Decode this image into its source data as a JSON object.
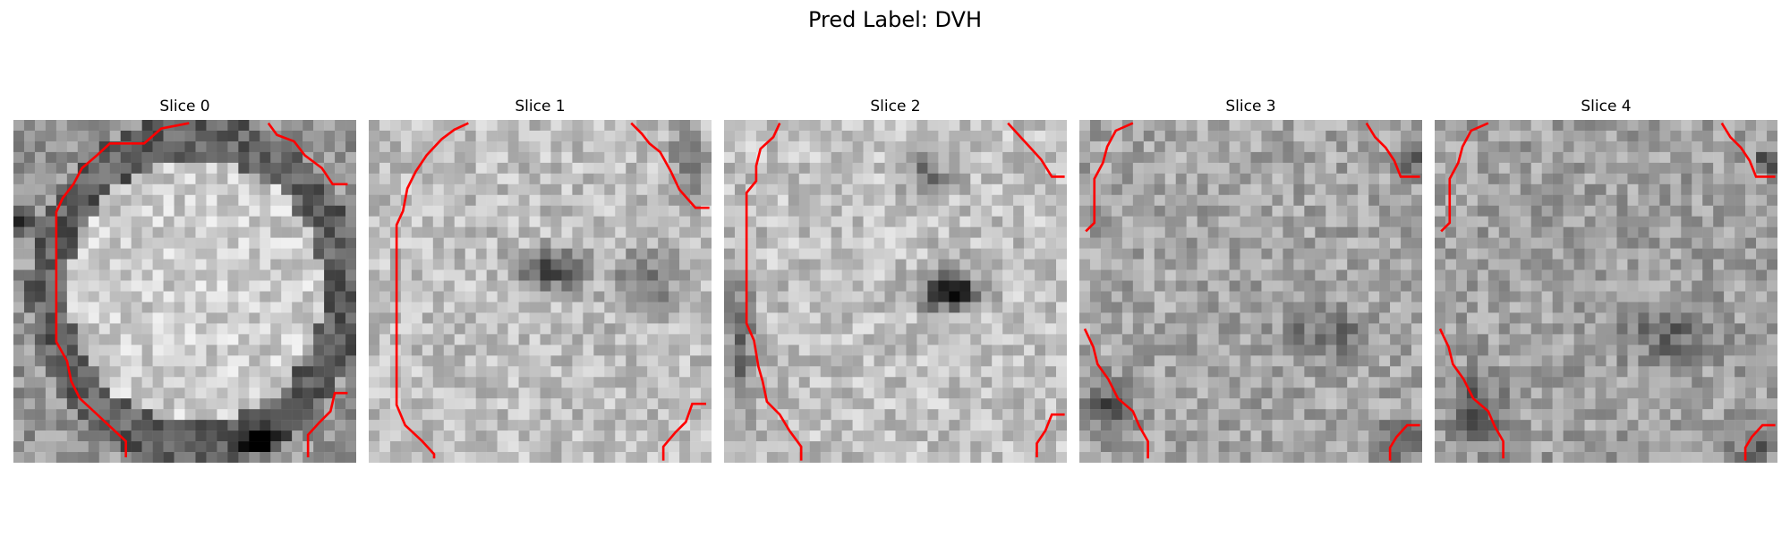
{
  "figure": {
    "title": "Pred Label: DVH"
  },
  "panels": [
    {
      "title": "Slice 0",
      "image": "grayscale-mri-patch",
      "overlay_color": "#ff0000"
    },
    {
      "title": "Slice 1",
      "image": "grayscale-mri-patch",
      "overlay_color": "#ff0000"
    },
    {
      "title": "Slice 2",
      "image": "grayscale-mri-patch",
      "overlay_color": "#ff0000"
    },
    {
      "title": "Slice 3",
      "image": "grayscale-mri-patch",
      "overlay_color": "#ff0000"
    },
    {
      "title": "Slice 4",
      "image": "grayscale-mri-patch",
      "overlay_color": "#ff0000"
    }
  ]
}
